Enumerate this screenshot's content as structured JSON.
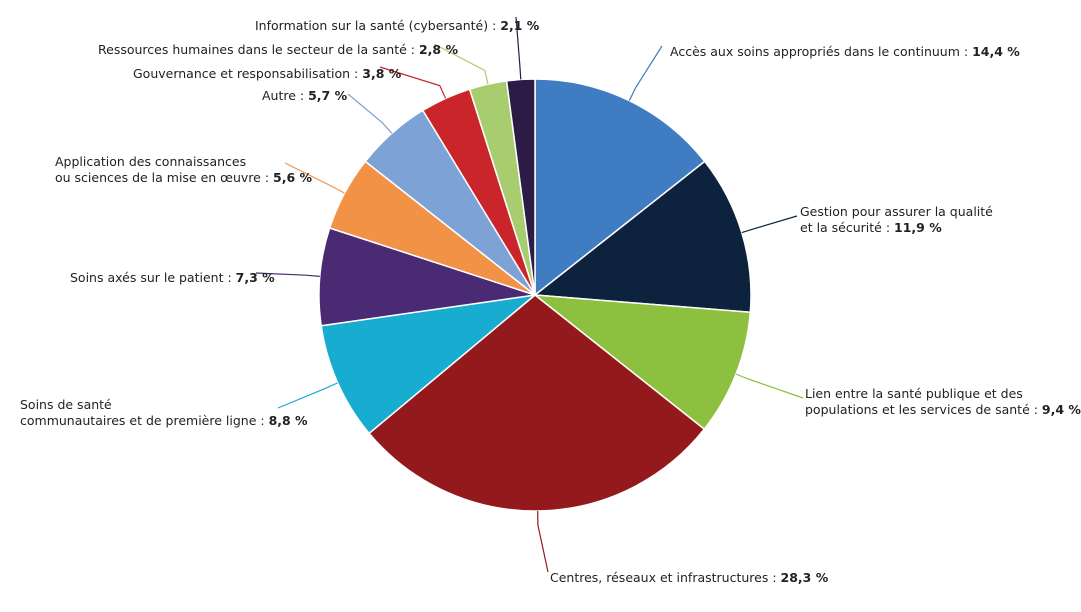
{
  "chart_data": {
    "type": "pie",
    "unit": "%",
    "slices": [
      {
        "label_lines": [
          "Accès aux soins appropriés dans le continuum :"
        ],
        "value": 14.4,
        "value_text": "14,4 %",
        "color": "#3f7cc1"
      },
      {
        "label_lines": [
          "Gestion pour assurer la qualité",
          "et la sécurité :"
        ],
        "value": 11.9,
        "value_text": "11,9 %",
        "color": "#0d233d"
      },
      {
        "label_lines": [
          "Lien entre la santé publique et des",
          "populations et les services de santé :"
        ],
        "value": 9.4,
        "value_text": "9,4 %",
        "color": "#8dc03f"
      },
      {
        "label_lines": [
          "Centres, réseaux et infrastructures :"
        ],
        "value": 28.3,
        "value_text": "28,3 %",
        "color": "#94191c"
      },
      {
        "label_lines": [
          "Soins de santé",
          "communautaires et de première ligne :"
        ],
        "value": 8.8,
        "value_text": "8,8 %",
        "color": "#18acd0"
      },
      {
        "label_lines": [
          "Soins axés sur le patient :"
        ],
        "value": 7.3,
        "value_text": "7,3 %",
        "color": "#4a2a72"
      },
      {
        "label_lines": [
          "Application des connaissances",
          "ou sciences de la mise en œuvre :"
        ],
        "value": 5.6,
        "value_text": "5,6 %",
        "color": "#f29246"
      },
      {
        "label_lines": [
          "Autre :"
        ],
        "value": 5.7,
        "value_text": "5,7 %",
        "color": "#7da2d5"
      },
      {
        "label_lines": [
          "Gouvernance et responsabilisation :"
        ],
        "value": 3.8,
        "value_text": "3,8 %",
        "color": "#c9252b"
      },
      {
        "label_lines": [
          "Ressources humaines dans le secteur de la santé :"
        ],
        "value": 2.8,
        "value_text": "2,8 %",
        "color": "#a8cd6e"
      },
      {
        "label_lines": [
          "Information sur la santé (cybersanté) :"
        ],
        "value": 2.1,
        "value_text": "2,1 %",
        "color": "#2b1b46"
      }
    ]
  }
}
